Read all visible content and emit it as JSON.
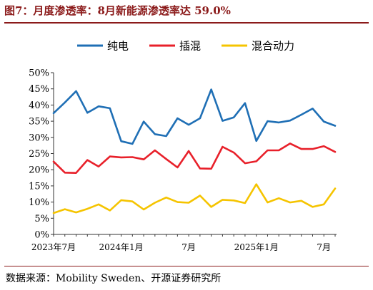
{
  "header": {
    "title": "图7：月度渗透率：8月新能源渗透率达 59.0%"
  },
  "footer": {
    "source": "数据来源：Mobility Sweden、开源证券研究所"
  },
  "chart_data": {
    "type": "line",
    "title": "",
    "xlabel": "",
    "ylabel": "",
    "ylim": [
      0,
      50
    ],
    "ytick_labels": [
      "0%",
      "5%",
      "10%",
      "15%",
      "20%",
      "25%",
      "30%",
      "35%",
      "40%",
      "45%",
      "50%"
    ],
    "xtick_labels": [
      "2023年7月",
      "2024年1月",
      "7月",
      "2025年1月",
      "7月"
    ],
    "xtick_positions": [
      0,
      6,
      12,
      18,
      24
    ],
    "grid": false,
    "legend_position": "top",
    "x": [
      "2023-07",
      "2023-08",
      "2023-09",
      "2023-10",
      "2023-11",
      "2023-12",
      "2024-01",
      "2024-02",
      "2024-03",
      "2024-04",
      "2024-05",
      "2024-06",
      "2024-07",
      "2024-08",
      "2024-09",
      "2024-10",
      "2024-11",
      "2024-12",
      "2025-01",
      "2025-02",
      "2025-03",
      "2025-04",
      "2025-05",
      "2025-06",
      "2025-07",
      "2025-08"
    ],
    "series": [
      {
        "name": "纯电",
        "color": "#1F6FB5",
        "values": [
          37.5,
          40.8,
          44.3,
          37.6,
          39.6,
          39.0,
          28.8,
          28.0,
          34.9,
          31.0,
          30.4,
          35.9,
          33.9,
          35.9,
          44.8,
          35.1,
          36.2,
          40.6,
          28.9,
          35.0,
          34.6,
          35.2,
          37.0,
          38.9,
          34.9,
          33.6
        ]
      },
      {
        "name": "插混",
        "color": "#E8202A",
        "values": [
          22.5,
          19.1,
          19.0,
          23.0,
          21.0,
          24.1,
          23.8,
          23.9,
          23.2,
          26.0,
          23.3,
          20.7,
          25.8,
          20.4,
          20.3,
          27.1,
          25.3,
          22.0,
          22.6,
          26.0,
          26.0,
          28.1,
          26.4,
          26.4,
          27.3,
          25.5
        ]
      },
      {
        "name": "混合动力",
        "color": "#F5C400",
        "values": [
          6.6,
          7.8,
          6.8,
          7.9,
          9.3,
          7.4,
          10.6,
          10.2,
          7.7,
          9.8,
          11.4,
          10.0,
          9.8,
          12.0,
          8.5,
          10.7,
          10.5,
          9.7,
          15.5,
          9.9,
          11.2,
          9.9,
          10.4,
          8.5,
          9.3,
          14.2
        ]
      }
    ]
  }
}
